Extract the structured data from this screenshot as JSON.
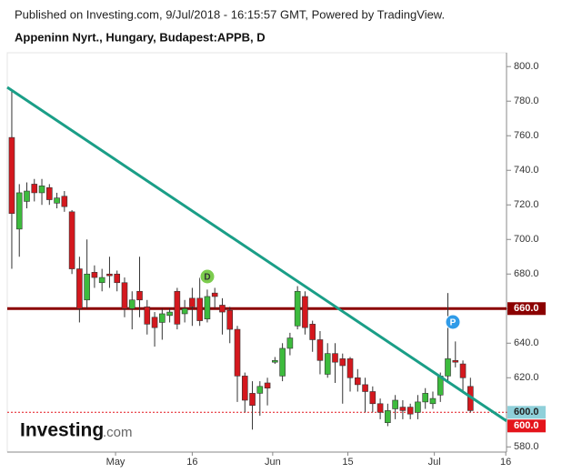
{
  "header": {
    "published": "Published on Investing.com, 9/Jul/2018 - 16:15:57 GMT, Powered by TradingView."
  },
  "branding": {
    "name": "Investing",
    "suffix": ".com"
  },
  "chart_data": {
    "type": "candlestick",
    "title": "Appeninn Nyrt., Hungary, Budapest:APPB, D",
    "x": [
      0,
      1,
      2,
      3,
      4,
      5,
      6,
      7,
      8,
      9,
      10,
      11,
      12,
      13,
      14,
      15,
      16,
      17,
      18,
      19,
      20,
      21,
      22,
      23,
      24,
      25,
      26,
      27,
      28,
      29,
      30,
      31,
      32,
      33,
      34,
      35,
      36,
      37,
      38,
      39,
      40,
      41,
      42,
      43,
      44,
      45,
      46,
      47,
      48,
      49,
      50,
      51,
      52,
      53,
      54,
      55,
      56,
      57,
      58,
      59,
      60,
      61
    ],
    "open": [
      759,
      706,
      722,
      732,
      727,
      730,
      721,
      725,
      716,
      683,
      665,
      681,
      675,
      680,
      680,
      675,
      660,
      670,
      661,
      655,
      652,
      656,
      670,
      657,
      666,
      666,
      654,
      669,
      662,
      659,
      648,
      621,
      611,
      611,
      617,
      629,
      621,
      637,
      650,
      667,
      651,
      642,
      622,
      634,
      631,
      631,
      620,
      616,
      612,
      605,
      594,
      602,
      603,
      603,
      600,
      606,
      605,
      610,
      621,
      630,
      628,
      615
    ],
    "high": [
      786,
      732,
      733,
      735,
      735,
      732,
      727,
      728,
      717,
      690,
      700,
      685,
      683,
      690,
      682,
      678,
      670,
      690,
      665,
      658,
      660,
      660,
      672,
      665,
      672,
      678,
      671,
      672,
      666,
      661,
      650,
      623,
      618,
      618,
      620,
      632,
      640,
      646,
      673,
      670,
      653,
      647,
      640,
      640,
      634,
      632,
      625,
      620,
      615,
      608,
      605,
      610,
      607,
      605,
      610,
      614,
      612,
      623,
      669,
      641,
      630,
      620
    ],
    "low": [
      683,
      690,
      718,
      722,
      720,
      720,
      718,
      716,
      680,
      652,
      660,
      672,
      670,
      672,
      670,
      655,
      648,
      655,
      645,
      638,
      642,
      652,
      648,
      652,
      650,
      650,
      652,
      660,
      645,
      640,
      606,
      600,
      590,
      598,
      604,
      628,
      618,
      633,
      648,
      645,
      635,
      622,
      620,
      617,
      605,
      612,
      612,
      600,
      600,
      596,
      592,
      596,
      596,
      596,
      596,
      602,
      602,
      606,
      618,
      626,
      612,
      600
    ],
    "close": [
      715,
      727,
      728,
      727,
      731,
      723,
      724,
      719,
      683,
      660,
      680,
      678,
      678,
      679,
      675,
      660,
      665,
      665,
      651,
      649,
      657,
      658,
      651,
      660,
      661,
      653,
      667,
      667,
      658,
      648,
      621,
      607,
      604,
      615,
      614,
      630,
      637,
      643,
      670,
      649,
      642,
      630,
      634,
      629,
      627,
      620,
      616,
      612,
      605,
      600,
      601,
      607,
      601,
      599,
      606,
      611,
      608,
      621,
      631,
      629,
      620,
      601
    ],
    "up_color": "#3dbb3d",
    "down_color": "#d4181e",
    "xlim": [
      -0.6,
      65.8
    ],
    "xticks": [
      {
        "value": 13.8,
        "label": "May"
      },
      {
        "value": 24,
        "label": "16"
      },
      {
        "value": 34.7,
        "label": "Jun"
      },
      {
        "value": 44.7,
        "label": "15"
      },
      {
        "value": 56.2,
        "label": "Jul"
      },
      {
        "value": 65.7,
        "label": "16"
      }
    ],
    "ylim": [
      577,
      808
    ],
    "yticks": [
      {
        "value": 580,
        "label": "580.0"
      },
      {
        "value": 600,
        "label": "600.0"
      },
      {
        "value": 620,
        "label": "620.0"
      },
      {
        "value": 640,
        "label": "640.0"
      },
      {
        "value": 660,
        "label": "660.0"
      },
      {
        "value": 680,
        "label": "680.0"
      },
      {
        "value": 700,
        "label": "700.0"
      },
      {
        "value": 720,
        "label": "720.0"
      },
      {
        "value": 740,
        "label": "740.0"
      },
      {
        "value": 760,
        "label": "760.0"
      },
      {
        "value": 780,
        "label": "780.0"
      },
      {
        "value": 800,
        "label": "800.0"
      }
    ],
    "trend_line": {
      "start": 788,
      "end": 595,
      "color": "#1a9e87"
    },
    "horizontal_lines": [
      {
        "value": 660,
        "color": "#8b0000",
        "style": "solid"
      },
      {
        "value": 600,
        "color": "#e4141b",
        "style": "dotted"
      }
    ],
    "price_labels": [
      {
        "value": 660,
        "label": "660.0",
        "color": "#8b0000",
        "text_color": "#ffffff"
      },
      {
        "value": 600,
        "label": "600.0",
        "color": "#8fd0da",
        "text_color": "#222222"
      },
      {
        "value": 600,
        "label": "600.0",
        "color": "#e4141b",
        "text_color": "#ffffff"
      }
    ],
    "events": [
      {
        "label": "D",
        "color": "#7ccc4e"
      },
      {
        "label": "P",
        "color": "#2f9be8"
      }
    ]
  }
}
